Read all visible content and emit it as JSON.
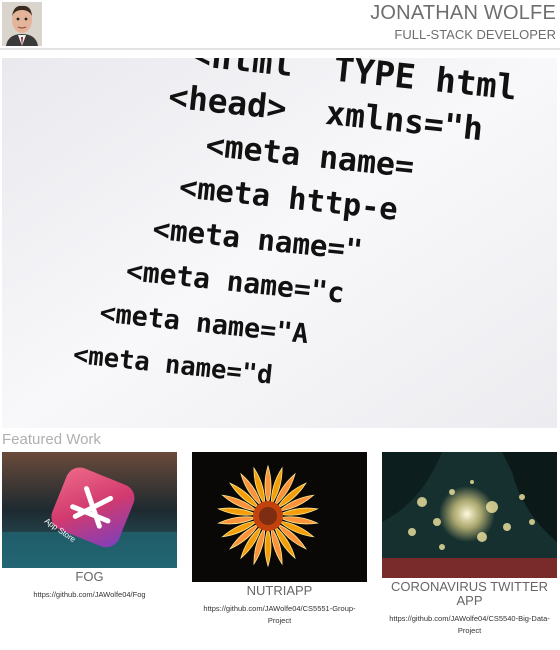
{
  "header": {
    "title": "JONATHAN WOLFE",
    "subtitle": "FULL-STACK DEVELOPER"
  },
  "hero": {
    "lines": [
      "<html  TYPE html",
      "<head>  xmlns=\"h",
      "<meta name=",
      "<meta http-e",
      "<meta name=\"",
      "<meta name=\"c",
      "<meta name=\"A",
      "<meta name=\"d"
    ]
  },
  "section_title": "Featured Work",
  "projects": [
    {
      "title": "FOG",
      "link": "https://github.com/JAWolfe04/Fog",
      "image_text": "App Store"
    },
    {
      "title": "NUTRIAPP",
      "link": "https://github.com/JAWolfe04/CS5551-Group-Project"
    },
    {
      "title": "CORONAVIRUS TWITTER APP",
      "link": "https://github.com/JAWolfe04/CS5540-Big-Data-Project"
    }
  ]
}
